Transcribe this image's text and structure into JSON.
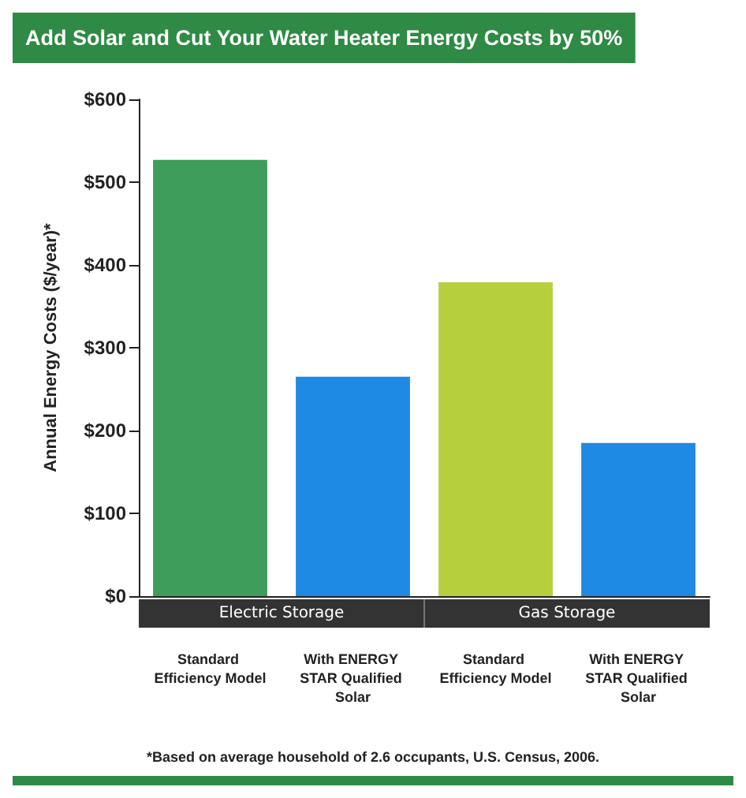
{
  "chart_data": {
    "type": "bar",
    "title": "Add Solar and Cut Your Water Heater Energy Costs by 50%",
    "ylabel": "Annual Energy Costs ($/year)*",
    "categories": [
      "Standard Efficiency Model",
      "With ENERGY STAR Qualified Solar",
      "Standard Efficiency Model",
      "With ENERGY STAR Qualified Solar"
    ],
    "values": [
      527,
      265,
      379,
      185
    ],
    "colors": [
      "#3f9d5c",
      "#1f8ae3",
      "#b6cf3d",
      "#1f8ae3"
    ],
    "ylim": [
      0,
      600
    ],
    "yticks": [
      {
        "value": 0,
        "label": "$0"
      },
      {
        "value": 100,
        "label": "$100"
      },
      {
        "value": 200,
        "label": "$200"
      },
      {
        "value": 300,
        "label": "$300"
      },
      {
        "value": 400,
        "label": "$400"
      },
      {
        "value": 500,
        "label": "$500"
      },
      {
        "value": 600,
        "label": "$600"
      }
    ],
    "grid": false,
    "annotations": [
      "Electric Storage",
      "Gas Storage",
      "*Based on average household of 2.6 occupants, U.S. Census, 2006."
    ]
  }
}
